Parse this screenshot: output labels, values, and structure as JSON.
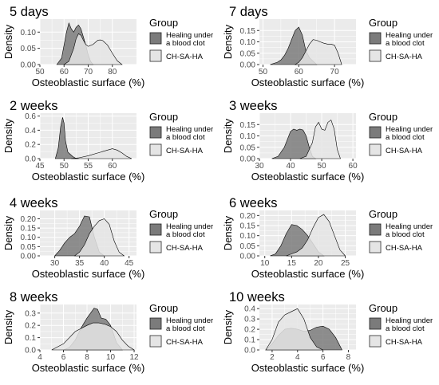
{
  "legend": {
    "title": "Group",
    "items": [
      {
        "label_lines": [
          "Healing under",
          "a blood clot"
        ],
        "fill": "#7b7b7b"
      },
      {
        "label_lines": [
          "CH-SA-HA"
        ],
        "fill": "#e5e5e5"
      }
    ]
  },
  "colors": {
    "panel_bg": "#ebebeb",
    "grid": "#ffffff",
    "series_1_fill": "#7b7b7b",
    "series_2_fill": "#e5e5e5",
    "outline": "#000000",
    "text": "#000000",
    "tick_text": "#4d4d4d"
  },
  "chart_data": [
    {
      "type": "area",
      "title": "5 days",
      "xlabel": "Osteoblastic  surface (%)",
      "ylabel": "Density",
      "xlim": [
        50,
        90
      ],
      "ylim": [
        0,
        0.14
      ],
      "xticks": [
        50,
        60,
        70,
        80
      ],
      "yticks": [
        0.0,
        0.05,
        0.1
      ],
      "ytick_labels": [
        "0.00",
        "0.05",
        "0.10"
      ],
      "series": [
        {
          "name": "Healing under a blood clot",
          "x": [
            57,
            59,
            60,
            61,
            62,
            63,
            64,
            65,
            66,
            67,
            68,
            69,
            70,
            71,
            72
          ],
          "y": [
            0,
            0.02,
            0.06,
            0.1,
            0.128,
            0.11,
            0.1,
            0.115,
            0.122,
            0.11,
            0.085,
            0.06,
            0.03,
            0.01,
            0
          ]
        },
        {
          "name": "CH-SA-HA",
          "x": [
            60,
            62,
            64,
            65,
            66,
            67,
            68,
            69,
            70,
            72,
            74,
            75,
            76,
            78,
            80,
            82,
            84
          ],
          "y": [
            0,
            0.01,
            0.05,
            0.08,
            0.095,
            0.09,
            0.075,
            0.062,
            0.056,
            0.062,
            0.075,
            0.076,
            0.074,
            0.06,
            0.035,
            0.012,
            0
          ]
        }
      ]
    },
    {
      "type": "area",
      "title": "7 days",
      "xlabel": "Osteoblastic  surface (%)",
      "ylabel": "Density",
      "xlim": [
        49,
        76
      ],
      "ylim": [
        0,
        0.2
      ],
      "xticks": [
        50,
        60,
        70
      ],
      "yticks": [
        0.0,
        0.05,
        0.1,
        0.15
      ],
      "ytick_labels": [
        "0.00",
        "0.05",
        "0.10",
        "0.15"
      ],
      "series": [
        {
          "name": "Healing under a blood clot",
          "x": [
            52,
            54,
            55,
            56,
            57,
            58,
            59,
            60,
            61,
            62,
            63,
            64,
            65
          ],
          "y": [
            0,
            0.01,
            0.02,
            0.04,
            0.07,
            0.11,
            0.15,
            0.165,
            0.13,
            0.06,
            0.03,
            0.015,
            0
          ]
        },
        {
          "name": "CH-SA-HA",
          "x": [
            59,
            60,
            61,
            62,
            63,
            64,
            65,
            66,
            67,
            68,
            69,
            70,
            71,
            72
          ],
          "y": [
            0,
            0.01,
            0.03,
            0.06,
            0.09,
            0.11,
            0.107,
            0.1,
            0.094,
            0.09,
            0.09,
            0.085,
            0.05,
            0
          ]
        }
      ]
    },
    {
      "type": "area",
      "title": "2 weeks",
      "xlabel": "Osteoblastic  surface (%)",
      "ylabel": "Density",
      "xlim": [
        45,
        65
      ],
      "ylim": [
        0,
        0.64
      ],
      "xticks": [
        45,
        50,
        55,
        60
      ],
      "yticks": [
        0.0,
        0.2,
        0.4,
        0.6
      ],
      "ytick_labels": [
        "0.0",
        "0.2",
        "0.4",
        "0.6"
      ],
      "series": [
        {
          "name": "Healing under a blood clot",
          "x": [
            48.2,
            48.8,
            49.3,
            49.7,
            50.0,
            50.3,
            50.8,
            51.3,
            51.8,
            52.3,
            53.0
          ],
          "y": [
            0,
            0.15,
            0.45,
            0.58,
            0.5,
            0.25,
            0.09,
            0.06,
            0.03,
            0.01,
            0
          ]
        },
        {
          "name": "CH-SA-HA",
          "x": [
            51.5,
            53,
            55,
            57,
            58,
            59,
            60,
            61,
            62,
            63,
            64
          ],
          "y": [
            0,
            0.01,
            0.04,
            0.08,
            0.1,
            0.12,
            0.14,
            0.12,
            0.08,
            0.03,
            0
          ]
        }
      ]
    },
    {
      "type": "area",
      "title": "3 weeks",
      "xlabel": "Osteoblastic  surface (%)",
      "ylabel": "Density",
      "xlim": [
        30,
        61
      ],
      "ylim": [
        0,
        0.2
      ],
      "xticks": [
        30,
        40,
        50,
        60
      ],
      "yticks": [
        0.0,
        0.05,
        0.1,
        0.15
      ],
      "ytick_labels": [
        "0.00",
        "0.05",
        "0.10",
        "0.15"
      ],
      "series": [
        {
          "name": "Healing under a blood clot",
          "x": [
            34,
            36,
            38,
            40,
            41,
            42,
            43,
            44,
            45,
            46,
            47,
            48
          ],
          "y": [
            0,
            0.01,
            0.05,
            0.12,
            0.13,
            0.125,
            0.13,
            0.126,
            0.1,
            0.05,
            0.01,
            0
          ]
        },
        {
          "name": "CH-SA-HA",
          "x": [
            43,
            45,
            47,
            48,
            49,
            50,
            51,
            52,
            53,
            54,
            55,
            56
          ],
          "y": [
            0,
            0.01,
            0.07,
            0.14,
            0.16,
            0.13,
            0.125,
            0.16,
            0.17,
            0.13,
            0.04,
            0
          ]
        }
      ]
    },
    {
      "type": "area",
      "title": "4 weeks",
      "xlabel": "Osteoblastic  surface (%)",
      "ylabel": "Density",
      "xlim": [
        27,
        46.5
      ],
      "ylim": [
        0,
        0.245
      ],
      "xticks": [
        30,
        35,
        40,
        45
      ],
      "yticks": [
        0.0,
        0.05,
        0.1,
        0.15,
        0.2
      ],
      "ytick_labels": [
        "0.00",
        "0.05",
        "0.10",
        "0.15",
        "0.20"
      ],
      "series": [
        {
          "name": "Healing under a blood clot",
          "x": [
            30,
            31,
            32,
            33,
            34,
            35,
            36,
            37,
            38,
            39,
            40
          ],
          "y": [
            0,
            0.03,
            0.07,
            0.1,
            0.12,
            0.16,
            0.215,
            0.21,
            0.1,
            0.02,
            0
          ]
        },
        {
          "name": "CH-SA-HA",
          "x": [
            34,
            35,
            36,
            37,
            38,
            39,
            40,
            41,
            42,
            43,
            44
          ],
          "y": [
            0,
            0.02,
            0.06,
            0.12,
            0.16,
            0.19,
            0.2,
            0.17,
            0.08,
            0.02,
            0
          ]
        }
      ]
    },
    {
      "type": "area",
      "title": "6 weeks",
      "xlabel": "Osteoblastic  surface (%)",
      "ylabel": "Density",
      "xlim": [
        9,
        27
      ],
      "ylim": [
        0,
        0.225
      ],
      "xticks": [
        10,
        15,
        20,
        25
      ],
      "yticks": [
        0.0,
        0.05,
        0.1,
        0.15,
        0.2
      ],
      "ytick_labels": [
        "0.00",
        "0.05",
        "0.10",
        "0.15",
        "0.20"
      ],
      "series": [
        {
          "name": "Healing under a blood clot",
          "x": [
            11,
            12,
            13,
            14,
            15,
            16,
            17,
            18,
            19,
            20,
            21
          ],
          "y": [
            0,
            0.01,
            0.05,
            0.11,
            0.155,
            0.15,
            0.13,
            0.1,
            0.06,
            0.02,
            0
          ]
        },
        {
          "name": "CH-SA-HA",
          "x": [
            14,
            15,
            16,
            17,
            18,
            19,
            20,
            21,
            22,
            23,
            24,
            25
          ],
          "y": [
            0,
            0.01,
            0.02,
            0.04,
            0.08,
            0.14,
            0.19,
            0.205,
            0.17,
            0.1,
            0.03,
            0
          ]
        }
      ]
    },
    {
      "type": "area",
      "title": "8 weeks",
      "xlabel": "Osteoblastic  surface (%)",
      "ylabel": "Density",
      "xlim": [
        4,
        12.2
      ],
      "ylim": [
        0,
        0.37
      ],
      "xticks": [
        4,
        6,
        8,
        10,
        12
      ],
      "yticks": [
        0.0,
        0.1,
        0.2,
        0.3
      ],
      "ytick_labels": [
        "0.0",
        "0.1",
        "0.2",
        "0.3"
      ],
      "series": [
        {
          "name": "Healing under a blood clot",
          "x": [
            6,
            6.5,
            7,
            7.5,
            8,
            8.3,
            8.6,
            8.9,
            9.2,
            9.6,
            10,
            10.5,
            11
          ],
          "y": [
            0,
            0.02,
            0.08,
            0.18,
            0.26,
            0.3,
            0.34,
            0.33,
            0.26,
            0.25,
            0.2,
            0.06,
            0
          ]
        },
        {
          "name": "CH-SA-HA",
          "x": [
            5,
            6,
            7,
            8,
            8.5,
            9,
            9.5,
            10,
            10.5,
            11,
            11.5,
            12
          ],
          "y": [
            0,
            0.05,
            0.15,
            0.2,
            0.22,
            0.22,
            0.21,
            0.19,
            0.15,
            0.08,
            0.03,
            0
          ]
        }
      ]
    },
    {
      "type": "area",
      "title": "10 weeks",
      "xlabel": "Osteoblastic  surface (%)",
      "ylabel": "Density",
      "xlim": [
        1,
        8.6
      ],
      "ylim": [
        0,
        0.44
      ],
      "xticks": [
        2,
        4,
        6,
        8
      ],
      "yticks": [
        0.0,
        0.1,
        0.2,
        0.3,
        0.4
      ],
      "ytick_labels": [
        "0.0",
        "0.1",
        "0.2",
        "0.3",
        "0.4"
      ],
      "series": [
        {
          "name": "Healing under a blood clot",
          "x": [
            1.5,
            2,
            2.5,
            3,
            3.5,
            4,
            4.5,
            5,
            5.5,
            6,
            6.5,
            7,
            7.5
          ],
          "y": [
            0,
            0.06,
            0.14,
            0.2,
            0.21,
            0.2,
            0.18,
            0.19,
            0.22,
            0.23,
            0.2,
            0.12,
            0
          ]
        },
        {
          "name": "CH-SA-HA",
          "x": [
            1.5,
            2,
            2.5,
            3,
            3.5,
            4,
            4.5,
            5,
            5.5,
            6
          ],
          "y": [
            0,
            0.1,
            0.27,
            0.34,
            0.37,
            0.4,
            0.3,
            0.12,
            0.03,
            0
          ]
        }
      ]
    }
  ]
}
